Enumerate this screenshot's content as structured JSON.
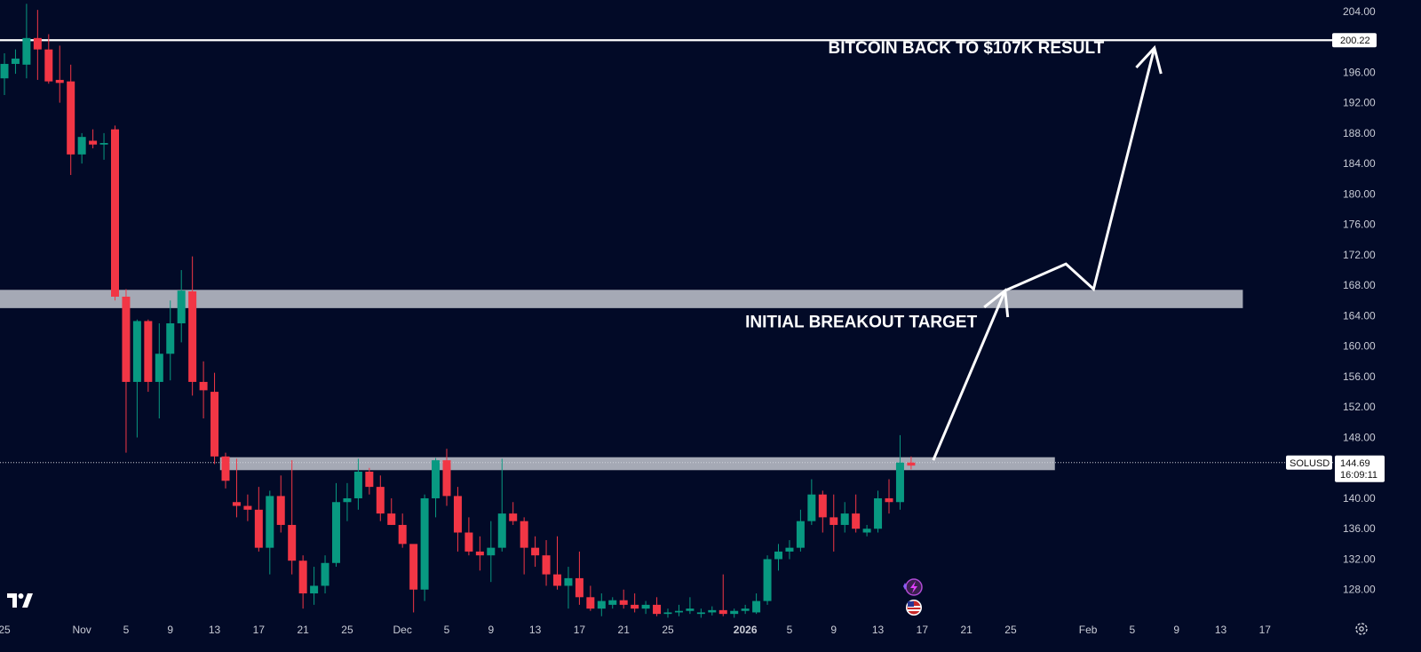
{
  "chart_data": {
    "type": "candlestick",
    "symbol": "SOLUSD",
    "ylim": [
      124,
      205.5
    ],
    "yticks": [
      128,
      132,
      136,
      140,
      144,
      148,
      152,
      156,
      160,
      164,
      168,
      172,
      176,
      180,
      184,
      188,
      192,
      196,
      200,
      204
    ],
    "xticks": [
      {
        "i": 0,
        "label": "25"
      },
      {
        "i": 7,
        "label": "Nov"
      },
      {
        "i": 11,
        "label": "5"
      },
      {
        "i": 15,
        "label": "9"
      },
      {
        "i": 19,
        "label": "13"
      },
      {
        "i": 23,
        "label": "17"
      },
      {
        "i": 27,
        "label": "21"
      },
      {
        "i": 31,
        "label": "25"
      },
      {
        "i": 36,
        "label": "Dec"
      },
      {
        "i": 40,
        "label": "5"
      },
      {
        "i": 44,
        "label": "9"
      },
      {
        "i": 48,
        "label": "13"
      },
      {
        "i": 52,
        "label": "17"
      },
      {
        "i": 56,
        "label": "21"
      },
      {
        "i": 60,
        "label": "25"
      },
      {
        "i": 67,
        "label": "2026",
        "bold": true
      },
      {
        "i": 71,
        "label": "5"
      },
      {
        "i": 75,
        "label": "9"
      },
      {
        "i": 79,
        "label": "13"
      },
      {
        "i": 83,
        "label": "17"
      },
      {
        "i": 87,
        "label": "21"
      },
      {
        "i": 91,
        "label": "25"
      },
      {
        "i": 98,
        "label": "Feb"
      },
      {
        "i": 102,
        "label": "5"
      },
      {
        "i": 106,
        "label": "9"
      },
      {
        "i": 110,
        "label": "13"
      },
      {
        "i": 114,
        "label": "17"
      }
    ],
    "candles": [
      [
        195.2,
        198.5,
        193.0,
        197.1
      ],
      [
        197.1,
        199.0,
        195.8,
        197.8
      ],
      [
        197.0,
        205.0,
        195.2,
        200.5
      ],
      [
        200.5,
        204.2,
        195.0,
        199.0
      ],
      [
        199.0,
        201.0,
        194.5,
        194.8
      ],
      [
        195.0,
        199.5,
        192.0,
        194.6
      ],
      [
        194.8,
        197.0,
        182.5,
        185.2
      ],
      [
        185.2,
        188.0,
        184.0,
        187.5
      ],
      [
        187.0,
        188.5,
        186.0,
        186.5
      ],
      [
        186.5,
        188.0,
        184.5,
        186.7
      ],
      [
        188.5,
        189.0,
        166.0,
        166.5
      ],
      [
        166.5,
        167.5,
        146.0,
        155.3
      ],
      [
        155.3,
        163.5,
        148.0,
        163.3
      ],
      [
        163.3,
        163.5,
        154.0,
        155.3
      ],
      [
        155.3,
        163.0,
        150.5,
        159.0
      ],
      [
        159.0,
        166.0,
        155.5,
        163.0
      ],
      [
        163.0,
        170.0,
        160.5,
        167.3
      ],
      [
        167.2,
        171.8,
        153.5,
        155.3
      ],
      [
        155.3,
        158.0,
        150.5,
        154.2
      ],
      [
        154.0,
        156.5,
        144.5,
        145.5
      ],
      [
        145.5,
        146.0,
        141.3,
        142.3
      ],
      [
        139.5,
        145.2,
        137.5,
        139.0
      ],
      [
        139.0,
        140.5,
        137.0,
        138.5
      ],
      [
        138.5,
        141.5,
        133.0,
        133.5
      ],
      [
        133.5,
        141.0,
        130.0,
        140.3
      ],
      [
        140.3,
        143.0,
        135.5,
        136.5
      ],
      [
        136.5,
        145.0,
        130.0,
        131.8
      ],
      [
        131.8,
        132.5,
        125.5,
        127.5
      ],
      [
        127.5,
        131.0,
        126.0,
        128.5
      ],
      [
        128.5,
        132.5,
        127.5,
        131.5
      ],
      [
        131.5,
        142.0,
        131.0,
        139.5
      ],
      [
        139.5,
        142.0,
        137.0,
        140.0
      ],
      [
        140.0,
        145.2,
        138.5,
        143.5
      ],
      [
        143.5,
        144.0,
        140.5,
        141.5
      ],
      [
        141.5,
        143.0,
        137.0,
        138.0
      ],
      [
        138.0,
        140.0,
        136.5,
        136.5
      ],
      [
        136.5,
        138.0,
        133.5,
        134.0
      ],
      [
        134.0,
        133.5,
        125.0,
        128.0
      ],
      [
        128.0,
        140.5,
        126.5,
        140.0
      ],
      [
        140.0,
        145.3,
        137.5,
        145.0
      ],
      [
        145.0,
        146.5,
        139.0,
        140.3
      ],
      [
        140.3,
        141.5,
        133.0,
        135.5
      ],
      [
        135.5,
        137.5,
        132.5,
        133.0
      ],
      [
        133.0,
        135.0,
        130.5,
        132.5
      ],
      [
        132.5,
        137.0,
        129.0,
        133.5
      ],
      [
        133.5,
        145.2,
        133.0,
        138.0
      ],
      [
        138.0,
        139.5,
        136.5,
        137.0
      ],
      [
        137.0,
        137.5,
        130.0,
        133.5
      ],
      [
        133.5,
        135.0,
        131.0,
        132.5
      ],
      [
        132.5,
        134.5,
        128.5,
        130.0
      ],
      [
        130.0,
        135.0,
        128.0,
        128.5
      ],
      [
        128.5,
        131.0,
        125.5,
        129.5
      ],
      [
        129.5,
        133.0,
        126.0,
        127.0
      ],
      [
        127.0,
        128.5,
        125.2,
        125.5
      ],
      [
        125.5,
        127.5,
        124.5,
        126.5
      ],
      [
        126.0,
        127.0,
        125.5,
        126.6
      ],
      [
        126.6,
        128.0,
        125.5,
        126.0
      ],
      [
        126.0,
        127.5,
        125.0,
        125.5
      ],
      [
        125.5,
        126.5,
        124.8,
        126.0
      ],
      [
        126.0,
        127.0,
        124.5,
        124.8
      ],
      [
        124.8,
        125.5,
        124.3,
        125.0
      ],
      [
        125.0,
        126.0,
        124.5,
        125.2
      ],
      [
        125.2,
        127.0,
        124.8,
        125.5
      ],
      [
        124.8,
        125.5,
        124.3,
        125.0
      ],
      [
        125.0,
        125.8,
        124.6,
        125.3
      ],
      [
        125.3,
        130.0,
        124.5,
        124.8
      ],
      [
        124.8,
        125.5,
        124.3,
        125.2
      ],
      [
        125.2,
        126.0,
        124.8,
        125.5
      ],
      [
        125.0,
        127.5,
        124.8,
        126.5
      ],
      [
        126.5,
        132.5,
        126.0,
        132.0
      ],
      [
        132.0,
        134.0,
        130.5,
        133.0
      ],
      [
        133.0,
        134.5,
        132.0,
        133.5
      ],
      [
        133.5,
        138.5,
        133.0,
        137.0
      ],
      [
        137.0,
        142.5,
        136.5,
        140.5
      ],
      [
        140.5,
        141.0,
        135.5,
        137.5
      ],
      [
        137.5,
        140.5,
        133.0,
        136.5
      ],
      [
        136.5,
        139.5,
        135.5,
        138.0
      ],
      [
        138.0,
        140.5,
        135.5,
        136.0
      ],
      [
        135.5,
        136.5,
        135.0,
        136.0
      ],
      [
        136.0,
        141.0,
        135.5,
        140.0
      ],
      [
        140.0,
        142.5,
        138.0,
        139.5
      ],
      [
        139.5,
        148.3,
        138.5,
        144.7
      ],
      [
        144.7,
        145.5,
        143.8,
        144.3
      ]
    ],
    "zones": [
      {
        "name": "upper-resistance-zone",
        "from": 165.0,
        "to": 167.4,
        "start_i": -1,
        "end_i": 112
      },
      {
        "name": "breakout-zone",
        "from": 143.7,
        "to": 145.4,
        "start_i": 19.5,
        "end_i": 95
      }
    ],
    "hline": {
      "value": 200.22,
      "label": "200.22"
    },
    "projection_path": [
      [
        84,
        145.0
      ],
      [
        90.5,
        167.3
      ],
      [
        96,
        170.8
      ],
      [
        98.5,
        167.5
      ],
      [
        104,
        199.2
      ]
    ],
    "arrow_heads": [
      [
        90.5,
        167.3
      ],
      [
        104,
        199.2
      ]
    ],
    "annotations": [
      {
        "text": "BITCOIN BACK TO $107K RESULT",
        "i": 74.5,
        "y": 198.5
      },
      {
        "text": "INITIAL BREAKOUT TARGET",
        "i": 67,
        "y": 162.5
      }
    ],
    "last_price": {
      "value": 144.69,
      "label": "144.69",
      "countdown": "16:09:11",
      "symbol_label": "SOLUSD"
    },
    "colors": {
      "background": "#020a27",
      "up": "#089981",
      "down": "#f23645",
      "zone": "#b3b7c1",
      "text": "#c9ccd6",
      "line": "#ffffff"
    },
    "icons": [
      "tradingview-logo-icon",
      "lightning-event-icon",
      "us-flag-icon",
      "settings-gear-icon"
    ]
  }
}
